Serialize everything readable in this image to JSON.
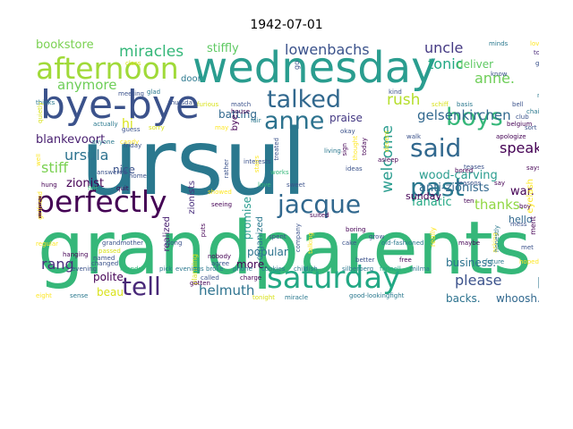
{
  "title": "1942-07-01",
  "words": [
    {
      "text": "ursul",
      "color": "#2a788e"
    },
    {
      "text": "grandparents",
      "color": "#35b779"
    },
    {
      "text": "wednesday",
      "color": "#2a9d8f"
    },
    {
      "text": "bye-bye",
      "color": "#3b528b"
    },
    {
      "text": "afternoon",
      "color": "#a0da39"
    },
    {
      "text": "perfectly",
      "color": "#440154"
    },
    {
      "text": "saturday",
      "color": "#22a884"
    },
    {
      "text": "jacque",
      "color": "#31688e"
    },
    {
      "text": "talked",
      "color": "#31688e"
    },
    {
      "text": "anne",
      "color": "#2c728e"
    },
    {
      "text": "past",
      "color": "#2a788e"
    },
    {
      "text": "boys",
      "color": "#35b779"
    },
    {
      "text": "said",
      "color": "#31688e"
    },
    {
      "text": "tell",
      "color": "#482878"
    },
    {
      "text": "miracles",
      "color": "#35b779"
    },
    {
      "text": "lowenbachs",
      "color": "#3b528b"
    },
    {
      "text": "uncle",
      "color": "#443983"
    },
    {
      "text": "tonic",
      "color": "#22a884"
    },
    {
      "text": "anne.",
      "color": "#6ece58"
    },
    {
      "text": "anymore",
      "color": "#6ece58"
    },
    {
      "text": "rush",
      "color": "#b5de2b"
    },
    {
      "text": "gelsenkirchen",
      "color": "#31688e"
    },
    {
      "text": "ursula",
      "color": "#2c728e"
    },
    {
      "text": "speak",
      "color": "#440154"
    },
    {
      "text": "stiff",
      "color": "#7ad151"
    },
    {
      "text": "blankevoort",
      "color": "#481f70"
    },
    {
      "text": "welcome",
      "color": "#2a9d8f"
    },
    {
      "text": "helmuth",
      "color": "#2c728e"
    },
    {
      "text": "please",
      "color": "#3b528b"
    },
    {
      "text": "pep",
      "color": "#2c728e"
    },
    {
      "text": "rang",
      "color": "#472d7b"
    },
    {
      "text": "stiffly",
      "color": "#5ec962"
    },
    {
      "text": "bookstore",
      "color": "#7ad151"
    },
    {
      "text": "batting",
      "color": "#31688e"
    },
    {
      "text": "thanks.",
      "color": "#90d743"
    },
    {
      "text": "fanatic",
      "color": "#22a884"
    },
    {
      "text": "zionist",
      "color": "#440154"
    },
    {
      "text": "nice",
      "color": "#3b528b"
    },
    {
      "text": "wood-carving",
      "color": "#2a9d8f"
    },
    {
      "text": "anti-zionists",
      "color": "#31688e"
    },
    {
      "text": "war.",
      "color": "#440154"
    },
    {
      "text": "hi",
      "color": "#d8e219"
    },
    {
      "text": "deliver",
      "color": "#5ec962"
    },
    {
      "text": "praise",
      "color": "#443983"
    },
    {
      "text": "more.",
      "color": "#440154"
    },
    {
      "text": "popular",
      "color": "#2c728e"
    },
    {
      "text": "beau",
      "color": "#d8e219"
    },
    {
      "text": "sunday",
      "color": "#440154"
    },
    {
      "text": "hello",
      "color": "#31688e"
    },
    {
      "text": "business.",
      "color": "#2c728e"
    },
    {
      "text": "backs.",
      "color": "#2c728e"
    },
    {
      "text": "whoosh...he",
      "color": "#31688e"
    },
    {
      "text": "polite.",
      "color": "#440154"
    },
    {
      "text": "door",
      "color": "#2a788e"
    },
    {
      "text": "organized",
      "color": "#2a788e"
    },
    {
      "text": "realized",
      "color": "#481f70"
    },
    {
      "text": "promise",
      "color": "#2a9d8f"
    },
    {
      "text": "zionists",
      "color": "#472d7b"
    },
    {
      "text": "bye",
      "color": "#440154"
    },
    {
      "text": "eyelash",
      "color": "#fde725"
    },
    {
      "text": "minds",
      "color": "#2a788e"
    },
    {
      "text": "loved",
      "color": "#fde725"
    },
    {
      "text": "told",
      "color": "#482878"
    },
    {
      "text": "going",
      "color": "#3b528b"
    },
    {
      "text": "chairs",
      "color": "#2a788e"
    },
    {
      "text": "need",
      "color": "#2a788e"
    },
    {
      "text": "apologize",
      "color": "#440154"
    },
    {
      "text": "says",
      "color": "#440154"
    },
    {
      "text": "planning",
      "color": "#d8e219"
    },
    {
      "text": "grandmother",
      "color": "#3b528b"
    },
    {
      "text": "along",
      "color": "#3b528b"
    },
    {
      "text": "spent",
      "color": "#3b528b"
    },
    {
      "text": "cake",
      "color": "#3b528b"
    },
    {
      "text": "old-fashioned",
      "color": "#2a788e"
    },
    {
      "text": "maybe",
      "color": "#440154"
    },
    {
      "text": "future",
      "color": "#2a788e"
    },
    {
      "text": "friends",
      "color": "#35b779"
    },
    {
      "text": "pick",
      "color": "#2a788e"
    },
    {
      "text": "evenings",
      "color": "#2a788e"
    },
    {
      "text": "broke",
      "color": "#2a788e"
    },
    {
      "text": "phone",
      "color": "#2a788e"
    },
    {
      "text": "cookies",
      "color": "#2a788e"
    },
    {
      "text": "childish",
      "color": "#2a788e"
    },
    {
      "text": "silberberg",
      "color": "#2a788e"
    },
    {
      "text": "fannell",
      "color": "#22a884"
    },
    {
      "text": "milma",
      "color": "#2a788e"
    },
    {
      "text": "good-lookingfight",
      "color": "#2a788e"
    },
    {
      "text": "miracle",
      "color": "#2a788e"
    },
    {
      "text": "tonight",
      "color": "#d8e219"
    },
    {
      "text": "girlfriend",
      "color": "#fde725"
    },
    {
      "text": "thinks",
      "color": "#2a788e"
    },
    {
      "text": "quietly",
      "color": "#d8e219"
    },
    {
      "text": "actually",
      "color": "#2a788e"
    },
    {
      "text": "anyone",
      "color": "#2a788e"
    },
    {
      "text": "candy",
      "color": "#fde725"
    },
    {
      "text": "guess",
      "color": "#3b528b"
    },
    {
      "text": "home",
      "color": "#3b528b"
    },
    {
      "text": "felt",
      "color": "#35b779"
    },
    {
      "text": "quit",
      "color": "#440154"
    },
    {
      "text": "hung",
      "color": "#440154"
    },
    {
      "text": "regular",
      "color": "#fde725"
    },
    {
      "text": "eight",
      "color": "#fde725"
    },
    {
      "text": "sense",
      "color": "#2a788e"
    },
    {
      "text": "named",
      "color": "#3b528b"
    },
    {
      "text": "hanging",
      "color": "#440154"
    },
    {
      "text": "passed",
      "color": "#d8e219"
    },
    {
      "text": "changed",
      "color": "#3b528b"
    },
    {
      "text": "evening",
      "color": "#3b528b"
    },
    {
      "text": "nobody",
      "color": "#440154"
    },
    {
      "text": "agree",
      "color": "#3b528b"
    },
    {
      "text": "seeing",
      "color": "#440154"
    },
    {
      "text": "showed",
      "color": "#fde725"
    },
    {
      "text": "love",
      "color": "#35b779"
    },
    {
      "text": "sweet",
      "color": "#3b528b"
    },
    {
      "text": "suited",
      "color": "#440154"
    },
    {
      "text": "boring",
      "color": "#440154"
    },
    {
      "text": "grow",
      "color": "#3b528b"
    },
    {
      "text": "better",
      "color": "#3b528b"
    },
    {
      "text": "free",
      "color": "#440154"
    },
    {
      "text": "meeting",
      "color": "#3b528b"
    },
    {
      "text": "class",
      "color": "#d8e219"
    },
    {
      "text": "glad",
      "color": "#2a788e"
    },
    {
      "text": "thursday",
      "color": "#3b528b"
    },
    {
      "text": "furious",
      "color": "#d8e219"
    },
    {
      "text": "match",
      "color": "#3b528b"
    },
    {
      "text": "house",
      "color": "#440154"
    },
    {
      "text": "fair",
      "color": "#2a788e"
    },
    {
      "text": "okay",
      "color": "#3b528b"
    },
    {
      "text": "living",
      "color": "#2a788e"
    },
    {
      "text": "works",
      "color": "#35b779"
    },
    {
      "text": "ideas",
      "color": "#3b528b"
    },
    {
      "text": "asleep",
      "color": "#440154"
    },
    {
      "text": "decent",
      "color": "#d8e219"
    },
    {
      "text": "walk",
      "color": "#3b528b"
    },
    {
      "text": "teases",
      "color": "#3b528b"
    },
    {
      "text": "reasons",
      "color": "#3b528b"
    },
    {
      "text": "bored",
      "color": "#440154"
    },
    {
      "text": "kind",
      "color": "#3b528b"
    },
    {
      "text": "schiff",
      "color": "#d8e219"
    },
    {
      "text": "basis",
      "color": "#2a788e"
    },
    {
      "text": "belgium",
      "color": "#440154"
    },
    {
      "text": "club",
      "color": "#3b528b"
    },
    {
      "text": "bell",
      "color": "#3b528b"
    },
    {
      "text": "know",
      "color": "#3b528b"
    },
    {
      "text": "boy",
      "color": "#440154"
    },
    {
      "text": "mess",
      "color": "#3b528b"
    },
    {
      "text": "met",
      "color": "#3b528b"
    },
    {
      "text": "hoped",
      "color": "#fde725"
    },
    {
      "text": "asking",
      "color": "#fde725"
    },
    {
      "text": "honestly",
      "color": "#2a788e"
    },
    {
      "text": "ment",
      "color": "#440154"
    },
    {
      "text": "sort",
      "color": "#3b528b"
    },
    {
      "text": "say",
      "color": "#440154"
    },
    {
      "text": "ten",
      "color": "#440154"
    },
    {
      "text": "sorry",
      "color": "#d8e219"
    },
    {
      "text": "friday",
      "color": "#3b528b"
    },
    {
      "text": "well",
      "color": "#fde725"
    },
    {
      "text": "answered",
      "color": "#3b528b"
    },
    {
      "text": "rather",
      "color": "#3b528b"
    },
    {
      "text": "interests",
      "color": "#3b528b"
    },
    {
      "text": "stairs",
      "color": "#fde725"
    },
    {
      "text": "treated",
      "color": "#3b528b"
    },
    {
      "text": "sign",
      "color": "#440154"
    },
    {
      "text": "thought",
      "color": "#fde725"
    },
    {
      "text": "today",
      "color": "#440154"
    },
    {
      "text": "company",
      "color": "#3b528b"
    },
    {
      "text": "puts",
      "color": "#440154"
    },
    {
      "text": "called",
      "color": "#3b528b"
    },
    {
      "text": "gotten",
      "color": "#440154"
    },
    {
      "text": "charge",
      "color": "#440154"
    },
    {
      "text": "talking",
      "color": "#fde725"
    },
    {
      "text": "really",
      "color": "#fde725"
    },
    {
      "text": "go",
      "color": "#3b528b"
    },
    {
      "text": "may",
      "color": "#fde725"
    }
  ]
}
